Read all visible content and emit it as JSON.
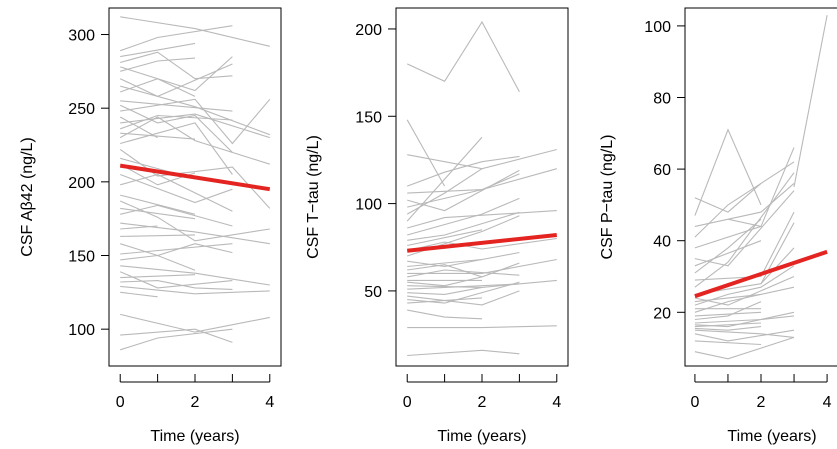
{
  "chart_data": [
    {
      "type": "line",
      "ylabel": "CSF Aβ42 (ng/L)",
      "xlabel": "Time (years)",
      "xlim": [
        -0.3,
        4.3
      ],
      "ylim": [
        75,
        318
      ],
      "x_ticks": [
        0,
        1,
        2,
        3,
        4
      ],
      "x_tick_labels": [
        "0",
        "",
        "2",
        "",
        "4"
      ],
      "y_ticks": [
        100,
        150,
        200,
        250,
        300
      ],
      "y_tick_labels": [
        "100",
        "150",
        "200",
        "250",
        "300"
      ],
      "trend": {
        "x": [
          0,
          4
        ],
        "y": [
          211,
          195
        ],
        "color": "#e32421"
      },
      "series_color": "#b9b9b9",
      "series": [
        {
          "x": [
            0,
            2,
            4
          ],
          "y": [
            312,
            304,
            292
          ]
        },
        {
          "x": [
            0,
            1,
            3
          ],
          "y": [
            289,
            298,
            306
          ]
        },
        {
          "x": [
            0,
            2
          ],
          "y": [
            285,
            294
          ]
        },
        {
          "x": [
            0,
            1,
            2,
            3
          ],
          "y": [
            281,
            288,
            270,
            272
          ]
        },
        {
          "x": [
            0,
            2,
            3
          ],
          "y": [
            278,
            262,
            285
          ]
        },
        {
          "x": [
            0,
            1,
            2
          ],
          "y": [
            275,
            282,
            284
          ]
        },
        {
          "x": [
            0,
            1,
            3
          ],
          "y": [
            270,
            258,
            280
          ]
        },
        {
          "x": [
            0,
            2,
            4
          ],
          "y": [
            265,
            251,
            232
          ]
        },
        {
          "x": [
            0,
            1,
            2
          ],
          "y": [
            261,
            270,
            258
          ]
        },
        {
          "x": [
            0,
            3
          ],
          "y": [
            255,
            248
          ]
        },
        {
          "x": [
            0,
            1,
            2,
            3
          ],
          "y": [
            252,
            240,
            245,
            220
          ]
        },
        {
          "x": [
            0,
            2,
            3,
            4
          ],
          "y": [
            248,
            256,
            226,
            256
          ]
        },
        {
          "x": [
            0,
            1
          ],
          "y": [
            244,
            230
          ]
        },
        {
          "x": [
            0,
            2,
            4
          ],
          "y": [
            240,
            246,
            230
          ]
        },
        {
          "x": [
            0,
            1,
            3
          ],
          "y": [
            236,
            245,
            242
          ]
        },
        {
          "x": [
            0,
            2
          ],
          "y": [
            233,
            229
          ]
        },
        {
          "x": [
            0,
            1,
            2,
            4
          ],
          "y": [
            230,
            244,
            228,
            212
          ]
        },
        {
          "x": [
            0,
            2,
            3
          ],
          "y": [
            226,
            240,
            205
          ]
        },
        {
          "x": [
            0,
            1,
            3,
            4
          ],
          "y": [
            222,
            204,
            210,
            182
          ]
        },
        {
          "x": [
            0,
            2
          ],
          "y": [
            216,
            202
          ]
        },
        {
          "x": [
            0,
            1,
            2
          ],
          "y": [
            212,
            198,
            206
          ]
        },
        {
          "x": [
            0,
            2,
            3
          ],
          "y": [
            205,
            186,
            195
          ]
        },
        {
          "x": [
            0,
            1,
            3
          ],
          "y": [
            198,
            205,
            180
          ]
        },
        {
          "x": [
            0,
            2
          ],
          "y": [
            191,
            178
          ]
        },
        {
          "x": [
            0,
            1,
            2,
            4
          ],
          "y": [
            187,
            176,
            160,
            168
          ]
        },
        {
          "x": [
            0,
            2
          ],
          "y": [
            182,
            175
          ]
        },
        {
          "x": [
            0,
            1,
            3
          ],
          "y": [
            178,
            184,
            170
          ]
        },
        {
          "x": [
            0,
            2,
            4
          ],
          "y": [
            172,
            166,
            158
          ]
        },
        {
          "x": [
            0,
            1
          ],
          "y": [
            168,
            170
          ]
        },
        {
          "x": [
            0,
            2
          ],
          "y": [
            163,
            164
          ]
        },
        {
          "x": [
            0,
            1,
            2,
            3
          ],
          "y": [
            158,
            150,
            158,
            152
          ]
        },
        {
          "x": [
            0,
            3
          ],
          "y": [
            151,
            158
          ]
        },
        {
          "x": [
            0,
            1,
            2
          ],
          "y": [
            147,
            150,
            140
          ]
        },
        {
          "x": [
            0,
            2,
            4
          ],
          "y": [
            143,
            138,
            130
          ]
        },
        {
          "x": [
            0,
            1,
            3
          ],
          "y": [
            139,
            128,
            133
          ]
        },
        {
          "x": [
            0,
            2
          ],
          "y": [
            135,
            137
          ]
        },
        {
          "x": [
            0,
            1,
            2,
            3
          ],
          "y": [
            132,
            133,
            128,
            127
          ]
        },
        {
          "x": [
            0,
            2,
            4
          ],
          "y": [
            129,
            124,
            126
          ]
        },
        {
          "x": [
            0,
            1
          ],
          "y": [
            125,
            122
          ]
        },
        {
          "x": [
            0,
            2,
            4
          ],
          "y": [
            110,
            98,
            108
          ]
        },
        {
          "x": [
            0,
            1,
            3
          ],
          "y": [
            86,
            94,
            100
          ]
        },
        {
          "x": [
            0,
            2,
            3
          ],
          "y": [
            96,
            100,
            91
          ]
        }
      ]
    },
    {
      "type": "line",
      "ylabel": "CSF T−tau (ng/L)",
      "xlabel": "Time (years)",
      "xlim": [
        -0.3,
        4.3
      ],
      "ylim": [
        7,
        212
      ],
      "x_ticks": [
        0,
        1,
        2,
        3,
        4
      ],
      "x_tick_labels": [
        "0",
        "",
        "2",
        "",
        "4"
      ],
      "y_ticks": [
        50,
        100,
        150,
        200
      ],
      "y_tick_labels": [
        "50",
        "100",
        "150",
        "200"
      ],
      "trend": {
        "x": [
          0,
          4
        ],
        "y": [
          73,
          82
        ],
        "color": "#e32421"
      },
      "series_color": "#b9b9b9",
      "series": [
        {
          "x": [
            0,
            1,
            2,
            3
          ],
          "y": [
            180,
            170,
            204,
            164
          ]
        },
        {
          "x": [
            0,
            1
          ],
          "y": [
            148,
            110
          ]
        },
        {
          "x": [
            0,
            2,
            4
          ],
          "y": [
            128,
            120,
            131
          ]
        },
        {
          "x": [
            0,
            1,
            2,
            3
          ],
          "y": [
            110,
            118,
            124,
            127
          ]
        },
        {
          "x": [
            0,
            2,
            4
          ],
          "y": [
            106,
            108,
            120
          ]
        },
        {
          "x": [
            0,
            1,
            3
          ],
          "y": [
            102,
            96,
            119
          ]
        },
        {
          "x": [
            0,
            2,
            3
          ],
          "y": [
            98,
            108,
            117
          ]
        },
        {
          "x": [
            0,
            1,
            2
          ],
          "y": [
            94,
            106,
            120
          ]
        },
        {
          "x": [
            0,
            2
          ],
          "y": [
            90,
            138
          ]
        },
        {
          "x": [
            0,
            1,
            4
          ],
          "y": [
            86,
            92,
            96
          ]
        },
        {
          "x": [
            0,
            2,
            3
          ],
          "y": [
            82,
            94,
            103
          ]
        },
        {
          "x": [
            0,
            1,
            3
          ],
          "y": [
            79,
            82,
            95
          ]
        },
        {
          "x": [
            0,
            2
          ],
          "y": [
            76,
            85
          ]
        },
        {
          "x": [
            0,
            1,
            2,
            4
          ],
          "y": [
            73,
            78,
            74,
            80
          ]
        },
        {
          "x": [
            0,
            2,
            3
          ],
          "y": [
            70,
            84,
            93
          ]
        },
        {
          "x": [
            0,
            1,
            3
          ],
          "y": [
            67,
            64,
            72
          ]
        },
        {
          "x": [
            0,
            2
          ],
          "y": [
            64,
            68
          ]
        },
        {
          "x": [
            0,
            1,
            2,
            3
          ],
          "y": [
            62,
            65,
            58,
            66
          ]
        },
        {
          "x": [
            0,
            2,
            4
          ],
          "y": [
            60,
            60,
            68
          ]
        },
        {
          "x": [
            0,
            1,
            3
          ],
          "y": [
            58,
            62,
            59
          ]
        },
        {
          "x": [
            0,
            2
          ],
          "y": [
            56,
            56
          ]
        },
        {
          "x": [
            0,
            1,
            2
          ],
          "y": [
            55,
            53,
            58
          ]
        },
        {
          "x": [
            0,
            2,
            4
          ],
          "y": [
            53,
            52,
            56
          ]
        },
        {
          "x": [
            0,
            3
          ],
          "y": [
            51,
            54
          ]
        },
        {
          "x": [
            0,
            1,
            2
          ],
          "y": [
            49,
            48,
            52
          ]
        },
        {
          "x": [
            0,
            2,
            3
          ],
          "y": [
            47,
            42,
            50
          ]
        },
        {
          "x": [
            0,
            1,
            3
          ],
          "y": [
            45,
            43,
            55
          ]
        },
        {
          "x": [
            0,
            2
          ],
          "y": [
            43,
            46
          ]
        },
        {
          "x": [
            0,
            1,
            2
          ],
          "y": [
            39,
            35,
            34
          ]
        },
        {
          "x": [
            0,
            2,
            4
          ],
          "y": [
            29,
            29,
            30
          ]
        },
        {
          "x": [
            0,
            2,
            3
          ],
          "y": [
            13,
            16,
            14
          ]
        }
      ]
    },
    {
      "type": "line",
      "ylabel": "CSF P−tau (ng/L)",
      "xlabel": "Time (years)",
      "xlim": [
        -0.3,
        4.3
      ],
      "ylim": [
        5,
        105
      ],
      "x_ticks": [
        0,
        1,
        2,
        3,
        4
      ],
      "x_tick_labels": [
        "0",
        "",
        "2",
        "",
        "4"
      ],
      "y_ticks": [
        20,
        40,
        60,
        80,
        100
      ],
      "y_tick_labels": [
        "20",
        "40",
        "60",
        "80",
        "100"
      ],
      "trend": {
        "x": [
          0,
          4
        ],
        "y": [
          24.5,
          36.9
        ],
        "color": "#e32421"
      },
      "series_color": "#b9b9b9",
      "series": [
        {
          "x": [
            0,
            1,
            2
          ],
          "y": [
            52,
            48,
            56
          ]
        },
        {
          "x": [
            0,
            1,
            2
          ],
          "y": [
            47,
            71,
            50
          ]
        },
        {
          "x": [
            0,
            2,
            3
          ],
          "y": [
            44,
            48,
            56
          ]
        },
        {
          "x": [
            0,
            1,
            3
          ],
          "y": [
            41,
            50,
            62
          ]
        },
        {
          "x": [
            0,
            2,
            3
          ],
          "y": [
            38,
            44,
            66
          ]
        },
        {
          "x": [
            0,
            1,
            3
          ],
          "y": [
            35,
            33,
            54
          ]
        },
        {
          "x": [
            0,
            2
          ],
          "y": [
            33,
            40
          ]
        },
        {
          "x": [
            0,
            1,
            2
          ],
          "y": [
            31,
            38,
            46
          ]
        },
        {
          "x": [
            0,
            2,
            3
          ],
          "y": [
            29,
            30,
            48
          ]
        },
        {
          "x": [
            0,
            1
          ],
          "y": [
            27,
            34
          ]
        },
        {
          "x": [
            0,
            2,
            3
          ],
          "y": [
            25,
            28,
            38
          ]
        },
        {
          "x": [
            0,
            1,
            3
          ],
          "y": [
            24,
            22,
            30
          ]
        },
        {
          "x": [
            0,
            2
          ],
          "y": [
            23,
            25
          ]
        },
        {
          "x": [
            0,
            1,
            2,
            3
          ],
          "y": [
            22,
            25,
            27,
            33
          ]
        },
        {
          "x": [
            0,
            2
          ],
          "y": [
            21,
            21
          ]
        },
        {
          "x": [
            0,
            1,
            3
          ],
          "y": [
            20,
            23,
            27
          ]
        },
        {
          "x": [
            0,
            2
          ],
          "y": [
            19,
            20
          ]
        },
        {
          "x": [
            0,
            1,
            2
          ],
          "y": [
            18,
            19,
            23
          ]
        },
        {
          "x": [
            0,
            2,
            3
          ],
          "y": [
            17,
            18,
            19
          ]
        },
        {
          "x": [
            0,
            1,
            3
          ],
          "y": [
            16.5,
            16,
            20
          ]
        },
        {
          "x": [
            0,
            2
          ],
          "y": [
            16,
            17
          ]
        },
        {
          "x": [
            0,
            1,
            2
          ],
          "y": [
            15.5,
            15,
            16
          ]
        },
        {
          "x": [
            0,
            2,
            3
          ],
          "y": [
            15,
            14,
            13
          ]
        },
        {
          "x": [
            0,
            1,
            3
          ],
          "y": [
            14,
            12,
            15
          ]
        },
        {
          "x": [
            0,
            2
          ],
          "y": [
            12,
            11
          ]
        },
        {
          "x": [
            0,
            1,
            2,
            3
          ],
          "y": [
            9,
            7,
            10,
            13
          ]
        },
        {
          "x": [
            1,
            3
          ],
          "y": [
            34,
            59
          ]
        },
        {
          "x": [
            1,
            2
          ],
          "y": [
            46,
            44
          ]
        },
        {
          "x": [
            2,
            3
          ],
          "y": [
            28,
            45
          ]
        },
        {
          "x": [
            3,
            4
          ],
          "y": [
            55,
            103
          ]
        }
      ]
    }
  ]
}
